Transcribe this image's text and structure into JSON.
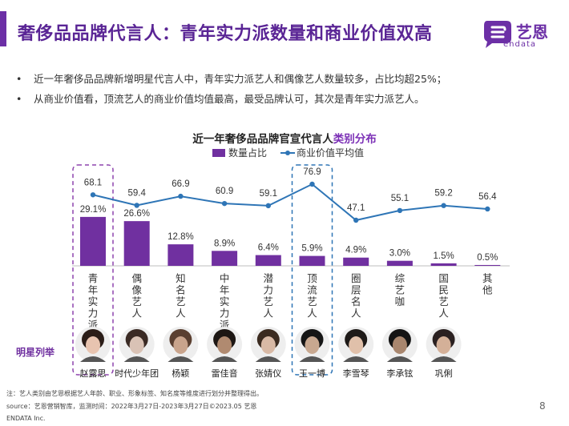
{
  "header": {
    "title": "奢侈品品牌代言人：青年实力派数量和商业价值双高",
    "logo_text": "艺恩",
    "logo_sub": "endata"
  },
  "bullets": [
    "近一年奢侈品品牌新增明星代言人中，青年实力派艺人和偶像艺人数量较多，占比均超25%；",
    "从商业价值看，顶流艺人的商业价值均值最高，最受品牌认可，其次是青年实力派艺人。"
  ],
  "chart_title": {
    "main": "近一年奢侈品品牌官宣代言人",
    "highlight": "类别分布"
  },
  "chart_data": {
    "type": "bar+line",
    "categories": [
      "青年实力派",
      "偶像艺人",
      "知名艺人",
      "中年实力派",
      "潜力艺人",
      "顶流艺人",
      "圈层名人",
      "综艺咖",
      "国民艺人",
      "其他"
    ],
    "series": [
      {
        "name": "数量占比",
        "type": "bar",
        "values": [
          29.1,
          26.6,
          12.8,
          8.9,
          6.4,
          5.9,
          4.9,
          3.0,
          1.5,
          0.5
        ],
        "labels": [
          "29.1%",
          "26.6%",
          "12.8%",
          "8.9%",
          "6.4%",
          "5.9%",
          "4.9%",
          "3.0%",
          "1.5%",
          "0.5%"
        ],
        "color": "#7030a0"
      },
      {
        "name": "商业价值平均值",
        "type": "line",
        "values": [
          68.1,
          59.4,
          66.9,
          60.9,
          59.1,
          76.9,
          47.1,
          55.1,
          59.2,
          56.4
        ],
        "color": "#2e75b6"
      }
    ],
    "highlighted": [
      "青年实力派",
      "顶流艺人"
    ]
  },
  "stars": {
    "label": "明星列举",
    "names": [
      "赵露思",
      "时代少年团",
      "杨颖",
      "雷佳音",
      "张婧仪",
      "王一博",
      "李雪琴",
      "李承铉",
      "巩俐"
    ]
  },
  "footer": {
    "note": "注：艺人类别由艺恩根据艺人年龄、职业、形象标签、知名度等维度进行划分并整理得出。",
    "source": "source：艺恩营销智库，监测时间：2022年3月27日-2023年3月27日©2023.05 艺恩",
    "company": "ENDATA Inc.",
    "page": "8"
  }
}
